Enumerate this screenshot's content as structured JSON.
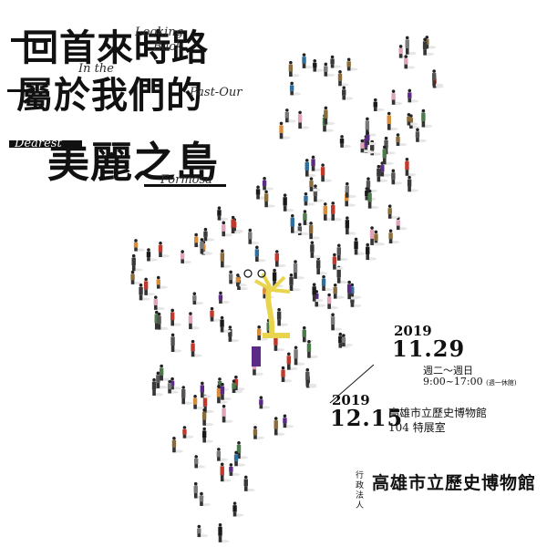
{
  "title": {
    "line1": "回首來時路",
    "line2": "屬於我們的",
    "line3": "美麗之島"
  },
  "title_en": {
    "w1": "Looking",
    "w2": "Back",
    "w3": "In the",
    "w4": "Past-Our",
    "w5": "Dearest",
    "w6": "Formosa"
  },
  "dates": {
    "start_year": "2019",
    "start_day": "11.29",
    "weekdays": "週二～週日",
    "hours": "9:00~17:00",
    "closed_note": "(週一休館)",
    "end_year": "2019",
    "end_day": "12.15",
    "venue": "高雄市立歷史博物館",
    "room": "104 特展室"
  },
  "museum": {
    "prefix": "行政法人",
    "name": "高雄市立歷史博物館"
  },
  "colors": {
    "ink": "#111111",
    "background": "#ffffff",
    "accent_red": "#c0392b",
    "accent_purple": "#5b2a86",
    "accent_yellow": "#e8d44d"
  }
}
